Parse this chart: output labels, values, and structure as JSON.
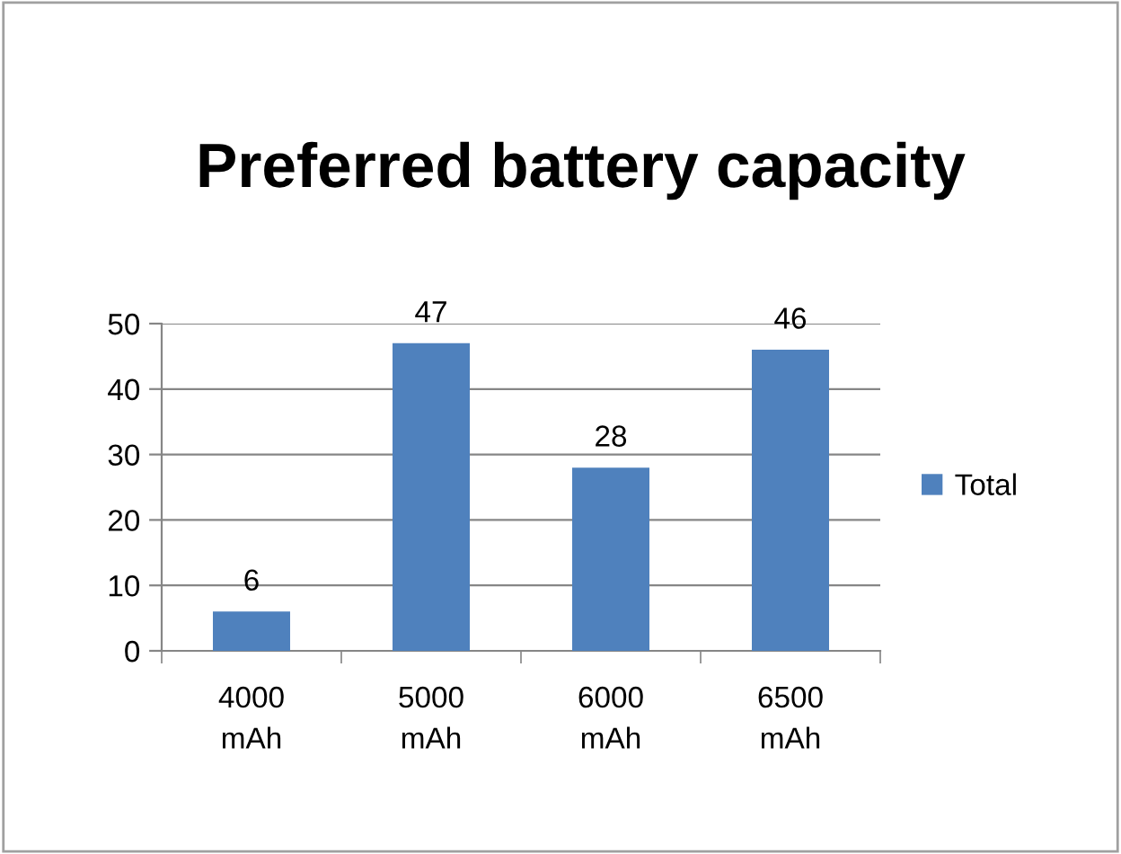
{
  "chart_data": {
    "type": "bar",
    "title": "Preferred battery capacity",
    "categories": [
      "4000 mAh",
      "5000 mAh",
      "6000 mAh",
      "6500 mAh"
    ],
    "series": [
      {
        "name": "Total",
        "color": "#4f81bd",
        "values": [
          6,
          47,
          28,
          46
        ]
      }
    ],
    "ylim": [
      0,
      50
    ],
    "yticks": [
      0,
      10,
      20,
      30,
      40,
      50
    ],
    "grid": "y",
    "legend": "right",
    "data_labels": true
  }
}
